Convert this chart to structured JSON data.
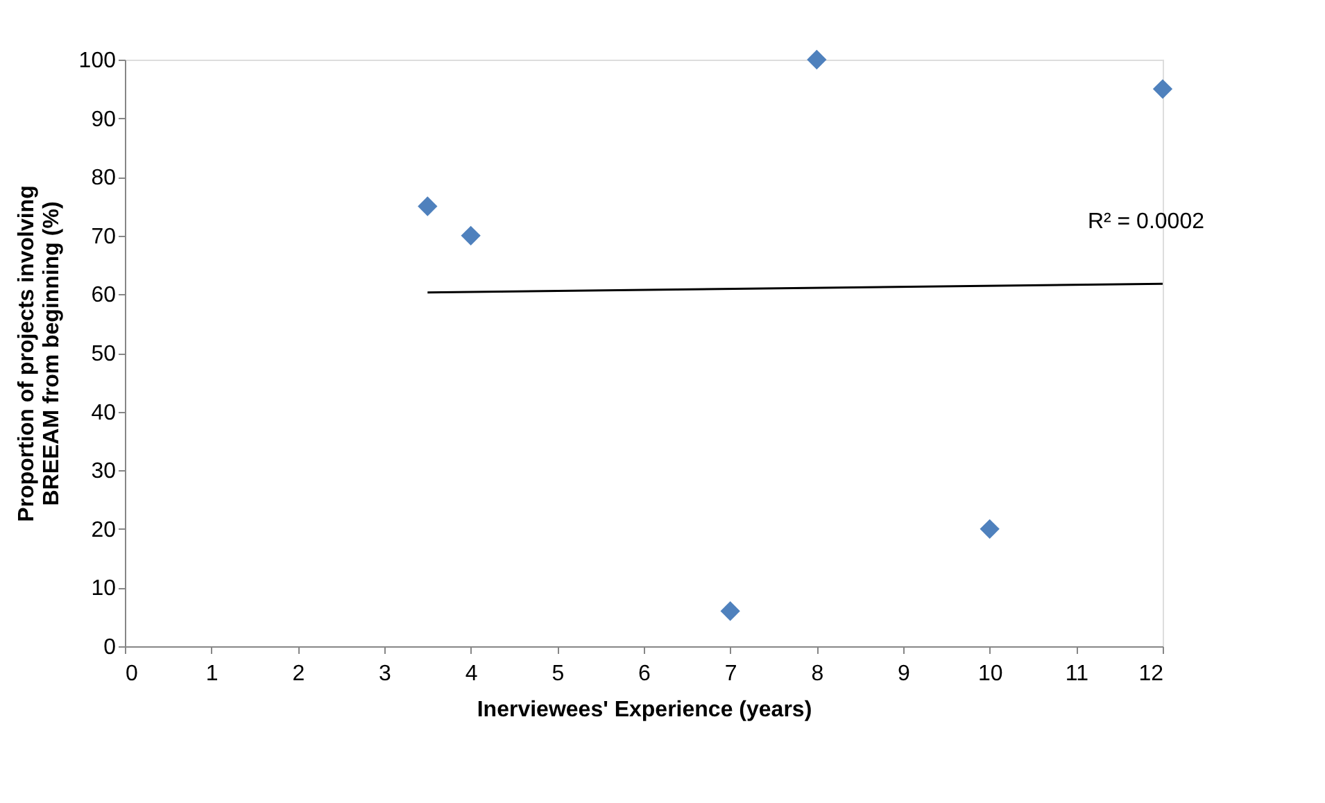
{
  "chart_data": {
    "type": "scatter",
    "xlabel": "Inerviewees' Experience (years)",
    "ylabel": "Proportion of projects involving BREEAM from beginning (%)",
    "series": [
      {
        "color": "#4f81bd",
        "x": [
          3.5,
          4,
          7,
          8,
          10,
          12
        ],
        "values": [
          75,
          70,
          6,
          100,
          20,
          95
        ],
        "marker": "diamond"
      },
      {
        "type": "line",
        "color": "#000000",
        "x": [
          3.5,
          12
        ],
        "values": [
          60.3,
          61.8
        ],
        "line_style": "solid",
        "marker": "none"
      }
    ],
    "annotations": [
      "R² = 0.0002"
    ],
    "xlim": [
      0,
      12
    ],
    "xticks": [
      0,
      1,
      2,
      3,
      4,
      5,
      6,
      7,
      8,
      9,
      10,
      11,
      12
    ],
    "ylim": [
      0,
      100
    ],
    "yticks": [
      0,
      10,
      20,
      30,
      40,
      50,
      60,
      70,
      80,
      90,
      100
    ],
    "grid": false
  }
}
